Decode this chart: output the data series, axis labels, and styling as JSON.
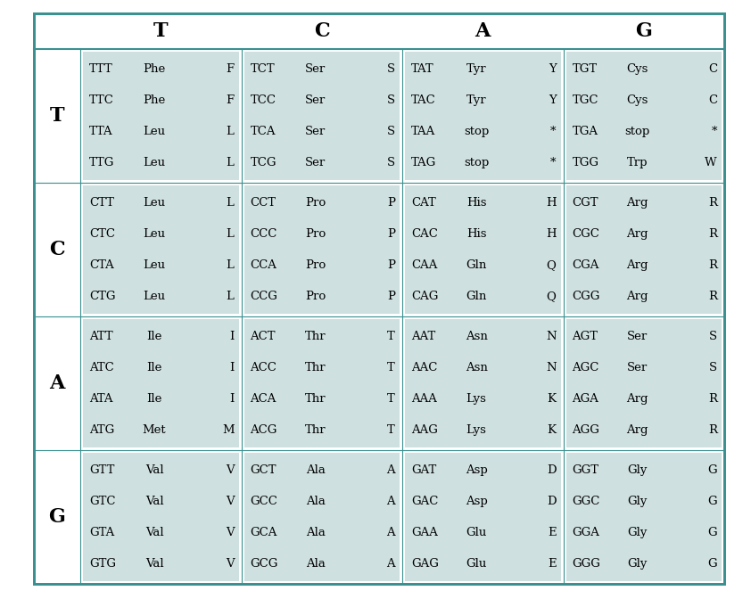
{
  "outer_border_color": "#3a9090",
  "cell_bg_color": "#cfe0e0",
  "text_color": "#000000",
  "outer_bg_color": "#ffffff",
  "col_headers": [
    "T",
    "C",
    "A",
    "G"
  ],
  "row_headers": [
    "T",
    "C",
    "A",
    "G"
  ],
  "codons": [
    [
      [
        "TTT",
        "Phe",
        "F",
        "TTC",
        "Phe",
        "F",
        "TTA",
        "Leu",
        "L",
        "TTG",
        "Leu",
        "L"
      ],
      [
        "TCT",
        "Ser",
        "S",
        "TCC",
        "Ser",
        "S",
        "TCA",
        "Ser",
        "S",
        "TCG",
        "Ser",
        "S"
      ],
      [
        "TAT",
        "Tyr",
        "Y",
        "TAC",
        "Tyr",
        "Y",
        "TAA",
        "stop",
        "*",
        "TAG",
        "stop",
        "*"
      ],
      [
        "TGT",
        "Cys",
        "C",
        "TGC",
        "Cys",
        "C",
        "TGA",
        "stop",
        "*",
        "TGG",
        "Trp",
        "W"
      ]
    ],
    [
      [
        "CTT",
        "Leu",
        "L",
        "CTC",
        "Leu",
        "L",
        "CTA",
        "Leu",
        "L",
        "CTG",
        "Leu",
        "L"
      ],
      [
        "CCT",
        "Pro",
        "P",
        "CCC",
        "Pro",
        "P",
        "CCA",
        "Pro",
        "P",
        "CCG",
        "Pro",
        "P"
      ],
      [
        "CAT",
        "His",
        "H",
        "CAC",
        "His",
        "H",
        "CAA",
        "Gln",
        "Q",
        "CAG",
        "Gln",
        "Q"
      ],
      [
        "CGT",
        "Arg",
        "R",
        "CGC",
        "Arg",
        "R",
        "CGA",
        "Arg",
        "R",
        "CGG",
        "Arg",
        "R"
      ]
    ],
    [
      [
        "ATT",
        "Ile",
        "I",
        "ATC",
        "Ile",
        "I",
        "ATA",
        "Ile",
        "I",
        "ATG",
        "Met",
        "M"
      ],
      [
        "ACT",
        "Thr",
        "T",
        "ACC",
        "Thr",
        "T",
        "ACA",
        "Thr",
        "T",
        "ACG",
        "Thr",
        "T"
      ],
      [
        "AAT",
        "Asn",
        "N",
        "AAC",
        "Asn",
        "N",
        "AAA",
        "Lys",
        "K",
        "AAG",
        "Lys",
        "K"
      ],
      [
        "AGT",
        "Ser",
        "S",
        "AGC",
        "Ser",
        "S",
        "AGA",
        "Arg",
        "R",
        "AGG",
        "Arg",
        "R"
      ]
    ],
    [
      [
        "GTT",
        "Val",
        "V",
        "GTC",
        "Val",
        "V",
        "GTA",
        "Val",
        "V",
        "GTG",
        "Val",
        "V"
      ],
      [
        "GCT",
        "Ala",
        "A",
        "GCC",
        "Ala",
        "A",
        "GCA",
        "Ala",
        "A",
        "GCG",
        "Ala",
        "A"
      ],
      [
        "GAT",
        "Asp",
        "D",
        "GAC",
        "Asp",
        "D",
        "GAA",
        "Glu",
        "E",
        "GAG",
        "Glu",
        "E"
      ],
      [
        "GGT",
        "Gly",
        "G",
        "GGC",
        "Gly",
        "G",
        "GGA",
        "Gly",
        "G",
        "GGG",
        "Gly",
        "G"
      ]
    ]
  ],
  "figsize": [
    8.42,
    6.72
  ],
  "dpi": 100,
  "header_fontsize": 16,
  "cell_fontsize": 9.5,
  "row_header_fontsize": 16
}
